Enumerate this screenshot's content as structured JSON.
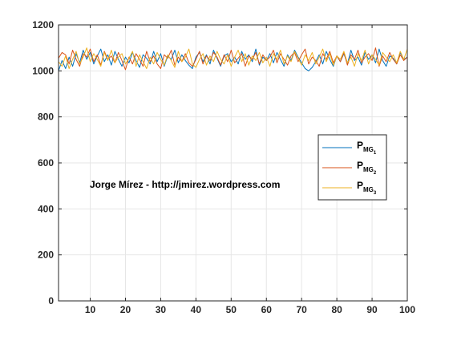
{
  "chart_data": {
    "type": "line",
    "title": "",
    "xlabel": "",
    "ylabel": "",
    "xlim": [
      1,
      100
    ],
    "ylim": [
      0,
      1200
    ],
    "xticks": [
      10,
      20,
      30,
      40,
      50,
      60,
      70,
      80,
      90,
      100
    ],
    "yticks": [
      0,
      200,
      400,
      600,
      800,
      1000,
      1200
    ],
    "grid": true,
    "legend_position": "right",
    "annotation": "Jorge Mírez - http://jmirez.wordpress.com",
    "series": [
      {
        "name": "P_MG1",
        "label_main": "P",
        "label_sub": "MG",
        "label_subsub": "1",
        "color": "#0072BD",
        "x": [
          1,
          2,
          3,
          4,
          5,
          6,
          7,
          8,
          9,
          10,
          11,
          12,
          13,
          14,
          15,
          16,
          17,
          18,
          19,
          20,
          21,
          22,
          23,
          24,
          25,
          26,
          27,
          28,
          29,
          30,
          31,
          32,
          33,
          34,
          35,
          36,
          37,
          38,
          39,
          40,
          41,
          42,
          43,
          44,
          45,
          46,
          47,
          48,
          49,
          50,
          51,
          52,
          53,
          54,
          55,
          56,
          57,
          58,
          59,
          60,
          61,
          62,
          63,
          64,
          65,
          66,
          67,
          68,
          69,
          70,
          71,
          72,
          73,
          74,
          75,
          76,
          77,
          78,
          79,
          80,
          81,
          82,
          83,
          84,
          85,
          86,
          87,
          88,
          89,
          90,
          91,
          92,
          93,
          94,
          95,
          96,
          97,
          98,
          99,
          100
        ],
        "values": [
          1000,
          1045,
          1010,
          1060,
          1020,
          1075,
          1035,
          1090,
          1050,
          1080,
          1030,
          1065,
          1095,
          1040,
          1070,
          1025,
          1085,
          1050,
          1020,
          1060,
          1035,
          1080,
          1045,
          1015,
          1070,
          1055,
          1030,
          1085,
          1040,
          1075,
          1020,
          1065,
          1050,
          1090,
          1035,
          1070,
          1045,
          1025,
          1010,
          1060,
          1080,
          1040,
          1070,
          1030,
          1090,
          1055,
          1020,
          1065,
          1075,
          1040,
          1060,
          1030,
          1085,
          1050,
          1070,
          1040,
          1095,
          1025,
          1060,
          1045,
          1075,
          1035,
          1080,
          1050,
          1020,
          1070,
          1045,
          1090,
          1060,
          1035,
          1010,
          1000,
          1015,
          1040,
          1070,
          1030,
          1085,
          1050,
          1020,
          1065,
          1040,
          1075,
          1030,
          1090,
          1045,
          1060,
          1025,
          1080,
          1050,
          1070,
          1035,
          1095,
          1045,
          1020,
          1065,
          1055,
          1030,
          1080,
          1050,
          1060
        ]
      },
      {
        "name": "P_MG2",
        "label_main": "P",
        "label_sub": "MG",
        "label_subsub": "2",
        "color": "#D95319",
        "x": [
          1,
          2,
          3,
          4,
          5,
          6,
          7,
          8,
          9,
          10,
          11,
          12,
          13,
          14,
          15,
          16,
          17,
          18,
          19,
          20,
          21,
          22,
          23,
          24,
          25,
          26,
          27,
          28,
          29,
          30,
          31,
          32,
          33,
          34,
          35,
          36,
          37,
          38,
          39,
          40,
          41,
          42,
          43,
          44,
          45,
          46,
          47,
          48,
          49,
          50,
          51,
          52,
          53,
          54,
          55,
          56,
          57,
          58,
          59,
          60,
          61,
          62,
          63,
          64,
          65,
          66,
          67,
          68,
          69,
          70,
          71,
          72,
          73,
          74,
          75,
          76,
          77,
          78,
          79,
          80,
          81,
          82,
          83,
          84,
          85,
          86,
          87,
          88,
          89,
          90,
          91,
          92,
          93,
          94,
          95,
          96,
          97,
          98,
          99,
          100
        ],
        "values": [
          1055,
          1080,
          1070,
          1030,
          1090,
          1050,
          1020,
          1075,
          1060,
          1095,
          1040,
          1070,
          1025,
          1085,
          1050,
          1065,
          1035,
          1080,
          1045,
          1005,
          1060,
          1030,
          1075,
          1050,
          1020,
          1085,
          1040,
          1065,
          1030,
          1010,
          1070,
          1055,
          1090,
          1025,
          1060,
          1040,
          1075,
          1035,
          1020,
          1050,
          1085,
          1030,
          1065,
          1045,
          1080,
          1060,
          1025,
          1070,
          1040,
          1090,
          1035,
          1055,
          1075,
          1020,
          1065,
          1050,
          1080,
          1030,
          1070,
          1045,
          1060,
          1090,
          1035,
          1075,
          1050,
          1025,
          1065,
          1080,
          1040,
          1070,
          1095,
          1030,
          1060,
          1045,
          1020,
          1075,
          1050,
          1085,
          1035,
          1065,
          1040,
          1080,
          1025,
          1070,
          1050,
          1090,
          1035,
          1060,
          1075,
          1045,
          1100,
          1020,
          1065,
          1040,
          1080,
          1050,
          1030,
          1070,
          1045,
          1060
        ]
      },
      {
        "name": "P_MG3",
        "label_main": "P",
        "label_sub": "MG",
        "label_subsub": "3",
        "color": "#EDB120",
        "x": [
          1,
          2,
          3,
          4,
          5,
          6,
          7,
          8,
          9,
          10,
          11,
          12,
          13,
          14,
          15,
          16,
          17,
          18,
          19,
          20,
          21,
          22,
          23,
          24,
          25,
          26,
          27,
          28,
          29,
          30,
          31,
          32,
          33,
          34,
          35,
          36,
          37,
          38,
          39,
          40,
          41,
          42,
          43,
          44,
          45,
          46,
          47,
          48,
          49,
          50,
          51,
          52,
          53,
          54,
          55,
          56,
          57,
          58,
          59,
          60,
          61,
          62,
          63,
          64,
          65,
          66,
          67,
          68,
          69,
          70,
          71,
          72,
          73,
          74,
          75,
          76,
          77,
          78,
          79,
          80,
          81,
          82,
          83,
          84,
          85,
          86,
          87,
          88,
          89,
          90,
          91,
          92,
          93,
          94,
          95,
          96,
          97,
          98,
          99,
          100
        ],
        "values": [
          1040,
          1020,
          1065,
          1010,
          1050,
          1085,
          1030,
          1060,
          1100,
          1040,
          1075,
          1050,
          1020,
          1080,
          1045,
          1090,
          1035,
          1060,
          1075,
          1030,
          1055,
          1085,
          1020,
          1070,
          1040,
          1010,
          1060,
          1030,
          1080,
          1050,
          1025,
          1070,
          1045,
          1015,
          1085,
          1040,
          1060,
          1095,
          1030,
          1015,
          1050,
          1075,
          1025,
          1065,
          1040,
          1085,
          1050,
          1030,
          1070,
          1020,
          1060,
          1090,
          1040,
          1075,
          1025,
          1065,
          1045,
          1080,
          1035,
          1060,
          1020,
          1075,
          1050,
          1090,
          1030,
          1065,
          1040,
          1085,
          1055,
          1025,
          1070,
          1045,
          1080,
          1030,
          1060,
          1095,
          1040,
          1075,
          1025,
          1065,
          1050,
          1085,
          1035,
          1060,
          1020,
          1075,
          1045,
          1090,
          1030,
          1070,
          1050,
          1025,
          1080,
          1060,
          1040,
          1070,
          1035,
          1085,
          1050,
          1095
        ]
      }
    ]
  }
}
